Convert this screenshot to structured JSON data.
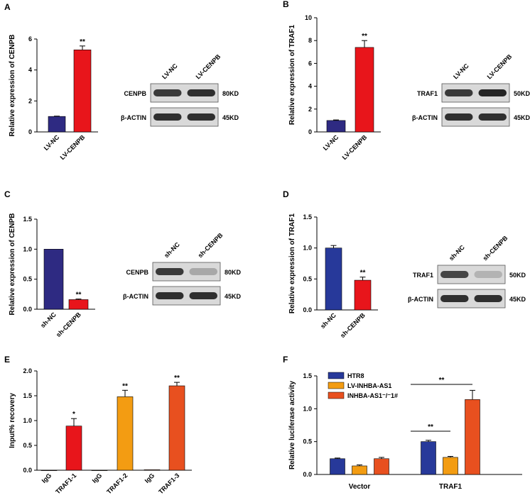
{
  "panels": [
    {
      "label": "A",
      "chart_data": {
        "type": "bar",
        "categories": [
          "LV-NC",
          "LV-CENPB"
        ],
        "values": [
          1.0,
          5.3
        ],
        "errors": [
          0.02,
          0.25
        ],
        "significance": [
          "",
          "**"
        ],
        "colors": [
          "#2e2a82",
          "#e8151b"
        ],
        "ylabel": "Relative expression of CENPB",
        "ylim": [
          0,
          6
        ],
        "yticks": [
          "0",
          "2",
          "4",
          "6"
        ]
      },
      "blot": {
        "lanes": [
          "LV-NC",
          "LV-CENPB"
        ],
        "rows": [
          {
            "protein": "CENPB",
            "size": "80KD",
            "intensity": [
              0.85,
              0.9
            ]
          },
          {
            "protein": "β-ACTIN",
            "size": "45KD",
            "intensity": [
              0.9,
              0.9
            ]
          }
        ]
      }
    },
    {
      "label": "B",
      "chart_data": {
        "type": "bar",
        "categories": [
          "LV-NC",
          "LV-CENPB"
        ],
        "values": [
          1.0,
          7.4
        ],
        "errors": [
          0.05,
          0.6
        ],
        "significance": [
          "",
          "**"
        ],
        "colors": [
          "#2e2a82",
          "#e8151b"
        ],
        "ylabel": "Relative expression of TRAF1",
        "ylim": [
          0,
          10
        ],
        "yticks": [
          "0",
          "2",
          "4",
          "6",
          "8",
          "10"
        ]
      },
      "blot": {
        "lanes": [
          "LV-NC",
          "LV-CENPB"
        ],
        "rows": [
          {
            "protein": "TRAF1",
            "size": "50KD",
            "intensity": [
              0.85,
              0.95
            ]
          },
          {
            "protein": "β-ACTIN",
            "size": "45KD",
            "intensity": [
              0.9,
              0.9
            ]
          }
        ]
      }
    },
    {
      "label": "C",
      "chart_data": {
        "type": "bar",
        "categories": [
          "sh-NC",
          "sh-CENPB"
        ],
        "values": [
          1.0,
          0.16
        ],
        "errors": [
          0.0,
          0.01
        ],
        "significance": [
          "",
          "**"
        ],
        "colors": [
          "#2e2a82",
          "#e8151b"
        ],
        "ylabel": "Relative expression of CENPB",
        "ylim": [
          0,
          1.5
        ],
        "yticks": [
          "0.0",
          "0.5",
          "1.0",
          "1.5"
        ]
      },
      "blot": {
        "lanes": [
          "sh-NC",
          "sh-CENPB"
        ],
        "rows": [
          {
            "protein": "CENPB",
            "size": "80KD",
            "intensity": [
              0.85,
              0.35
            ]
          },
          {
            "protein": "β-ACTIN",
            "size": "45KD",
            "intensity": [
              0.9,
              0.9
            ]
          }
        ]
      }
    },
    {
      "label": "D",
      "chart_data": {
        "type": "bar",
        "categories": [
          "sh-NC",
          "sh-CENPB"
        ],
        "values": [
          1.0,
          0.48
        ],
        "errors": [
          0.04,
          0.05
        ],
        "significance": [
          "",
          "**"
        ],
        "colors": [
          "#27399a",
          "#e8151b"
        ],
        "ylabel": "Relative expression of TRAF1",
        "ylim": [
          0,
          1.5
        ],
        "yticks": [
          "0.0",
          "0.5",
          "1.0",
          "1.5"
        ]
      },
      "blot": {
        "lanes": [
          "sh-NC",
          "sh-CENPB"
        ],
        "rows": [
          {
            "protein": "TRAF1",
            "size": "50KD",
            "intensity": [
              0.8,
              0.3
            ]
          },
          {
            "protein": "β-ACTIN",
            "size": "45KD",
            "intensity": [
              0.9,
              0.9
            ]
          }
        ]
      }
    },
    {
      "label": "E",
      "chart_data": {
        "type": "bar",
        "categories": [
          "IgG",
          "TRAF1-1",
          "IgG",
          "TRAF1-2",
          "IgG",
          "TRAF1-3"
        ],
        "values": [
          0.0,
          0.89,
          0.0,
          1.48,
          0.01,
          1.7
        ],
        "errors": [
          0.0,
          0.15,
          0.0,
          0.13,
          0.0,
          0.07
        ],
        "significance": [
          "",
          "*",
          "",
          "**",
          "",
          "**"
        ],
        "colors": [
          "#e8151b",
          "#e8151b",
          "#f39c12",
          "#f39c12",
          "#e8501f",
          "#e8501f"
        ],
        "ylabel": "Input% recovery",
        "ylim": [
          0,
          2.0
        ],
        "yticks": [
          "0.0",
          "0.5",
          "1.0",
          "1.5",
          "2.0"
        ]
      }
    },
    {
      "label": "F",
      "chart_data": {
        "type": "bar",
        "categories": [
          "Vector",
          "TRAF1"
        ],
        "series": [
          {
            "name": "HTR8",
            "values": [
              0.24,
              0.5
            ],
            "errors": [
              0.01,
              0.02
            ],
            "color": "#27399a"
          },
          {
            "name": "LV-INHBA-AS1",
            "values": [
              0.13,
              0.26
            ],
            "errors": [
              0.015,
              0.015
            ],
            "color": "#f39c12"
          },
          {
            "name": "INHBA-AS1⁻/⁻1#",
            "values": [
              0.24,
              1.14
            ],
            "errors": [
              0.02,
              0.14
            ],
            "color": "#e8501f"
          }
        ],
        "significance": [
          {
            "label": "**",
            "from": "HTR8",
            "to": "LV-INHBA-AS1",
            "category": "TRAF1"
          },
          {
            "label": "**",
            "from": "HTR8",
            "to": "INHBA-AS1⁻/⁻1#",
            "category": "TRAF1"
          }
        ],
        "ylabel": "Relative luciferase activity",
        "ylim": [
          0,
          1.5
        ],
        "yticks": [
          "0.0",
          "0.5",
          "1.0",
          "1.5"
        ],
        "legend_position": "top-left"
      }
    }
  ]
}
